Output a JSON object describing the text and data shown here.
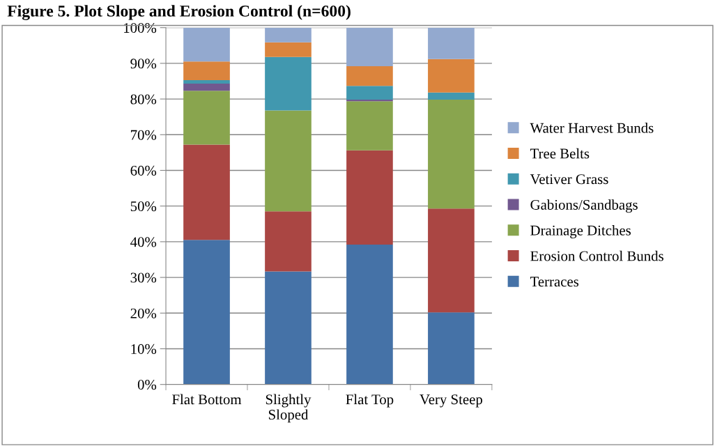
{
  "chart_data": {
    "type": "bar",
    "stacked": true,
    "title": "Figure 5. Plot Slope and Erosion Control (n=600)",
    "categories": [
      "Flat Bottom",
      "Slightly\nSloped",
      "Flat Top",
      "Very Steep"
    ],
    "series": [
      {
        "name": "Terraces",
        "color": "#4572a7",
        "values": [
          40.5,
          31.7,
          39.2,
          20.2
        ]
      },
      {
        "name": "Erosion Control Bunds",
        "color": "#aa4643",
        "values": [
          26.7,
          16.8,
          26.4,
          29.1
        ]
      },
      {
        "name": "Drainage Ditches",
        "color": "#89a54e",
        "values": [
          15.1,
          28.3,
          13.8,
          30.5
        ]
      },
      {
        "name": "Gabions/Sandbags",
        "color": "#71588f",
        "values": [
          2.0,
          0,
          0.4,
          0
        ]
      },
      {
        "name": "Vetiver Grass",
        "color": "#4198af",
        "values": [
          1.0,
          15.0,
          3.9,
          2.0
        ]
      },
      {
        "name": "Tree Belts",
        "color": "#db843d",
        "values": [
          5.2,
          4.1,
          5.5,
          9.4
        ]
      },
      {
        "name": "Water Harvest Bunds",
        "color": "#93a9cf",
        "values": [
          9.5,
          4.1,
          10.8,
          8.8
        ]
      }
    ],
    "ylim": [
      0,
      100
    ],
    "yticks": [
      {
        "value": 0,
        "label": "0%"
      },
      {
        "value": 10,
        "label": "10%"
      },
      {
        "value": 20,
        "label": "20%"
      },
      {
        "value": 30,
        "label": "30%"
      },
      {
        "value": 40,
        "label": "40%"
      },
      {
        "value": 50,
        "label": "50%"
      },
      {
        "value": 60,
        "label": "60%"
      },
      {
        "value": 70,
        "label": "70%"
      },
      {
        "value": 80,
        "label": "80%"
      },
      {
        "value": 90,
        "label": "90%"
      },
      {
        "value": 100,
        "label": "100%"
      }
    ],
    "grid": "y",
    "legend": "right"
  }
}
